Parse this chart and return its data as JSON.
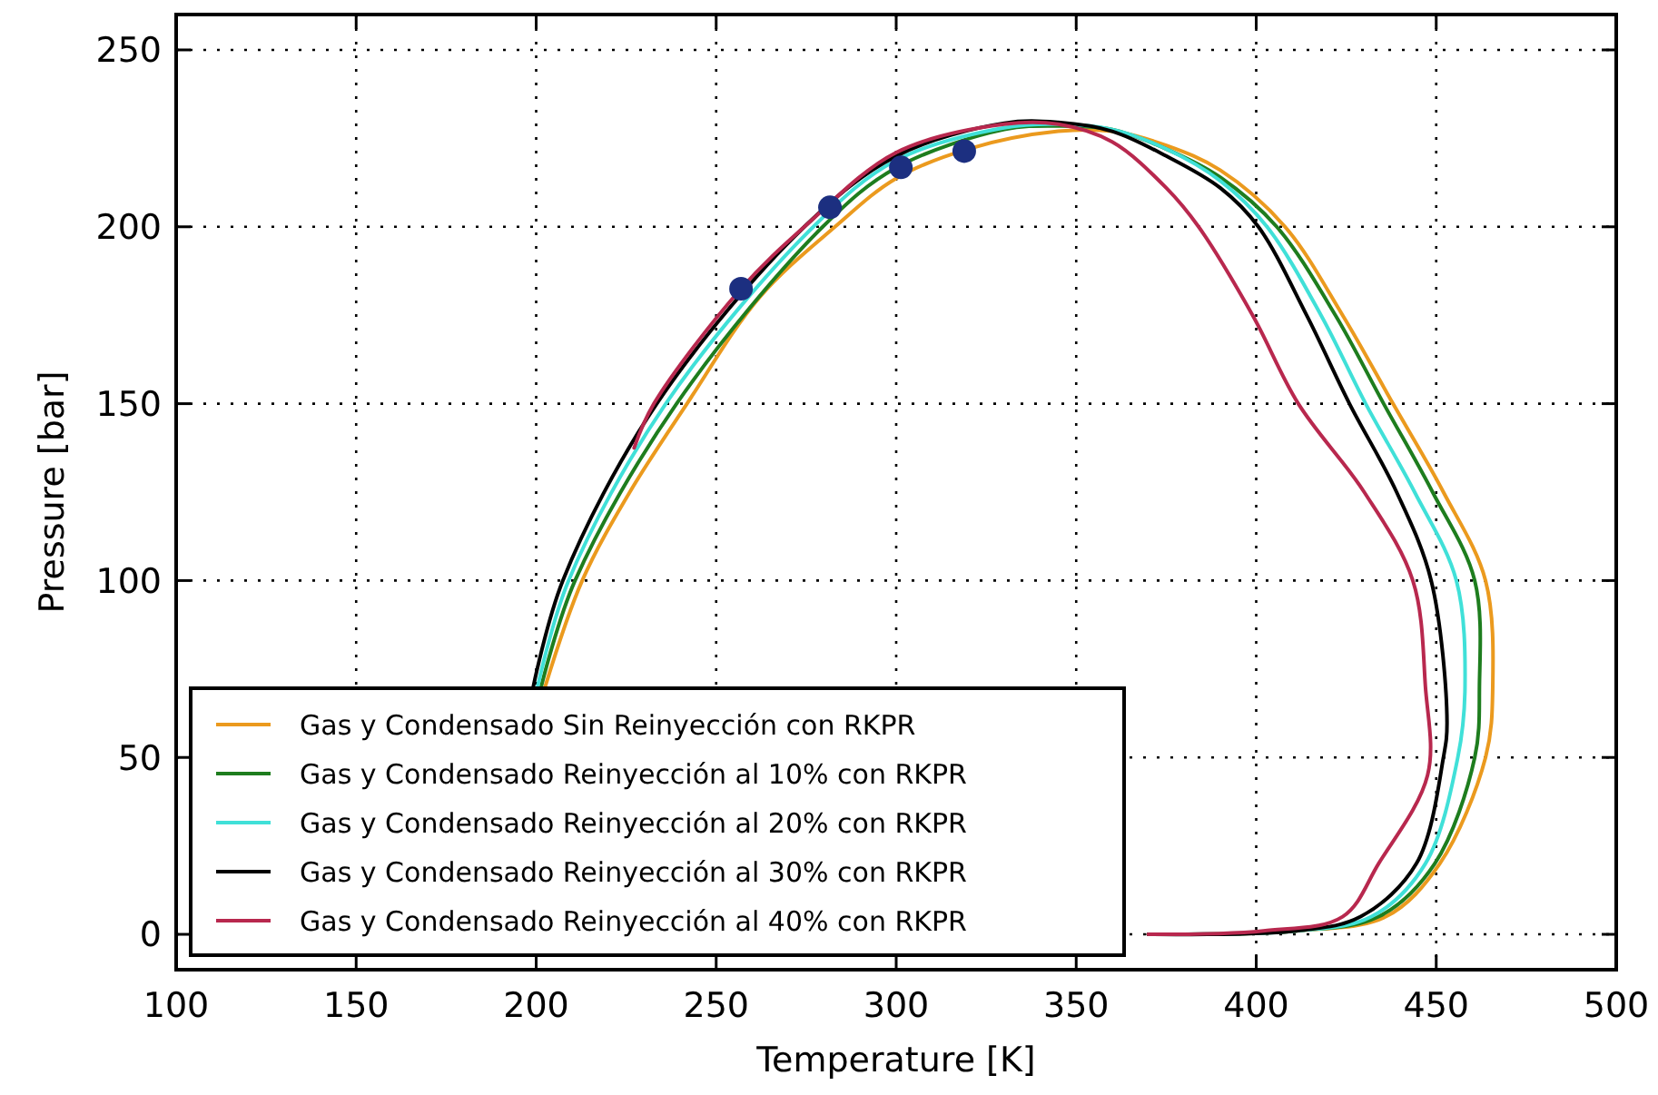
{
  "chart_data": {
    "type": "line",
    "xlabel": "Temperature [K]",
    "ylabel": "Pressure [bar]",
    "xlim": [
      100,
      500
    ],
    "ylim": [
      -10,
      260
    ],
    "xticks": [
      100,
      150,
      200,
      250,
      300,
      350,
      400,
      450,
      500
    ],
    "yticks": [
      0,
      50,
      100,
      150,
      200,
      250
    ],
    "grid": true,
    "legend": "bottom left",
    "line_style": "solid",
    "marker": "none",
    "series": [
      {
        "name": "Gas y Condensado Sin Reinyección con RKPR",
        "color": "#eb9a1e",
        "x": [
          202.5,
          212.8,
          226,
          241.9,
          262,
          283,
          300,
          320,
          345,
          360,
          375,
          390,
          408,
          424,
          438,
          452,
          463.7,
          465.7,
          463.7,
          451,
          436,
          411,
          370
        ],
        "values": [
          70,
          100,
          125,
          150,
          180,
          200,
          213.7,
          222,
          227,
          227,
          223,
          216,
          200,
          175,
          150,
          125,
          100,
          70,
          50,
          20,
          5,
          1,
          0
        ]
      },
      {
        "name": "Gas y Condensado Reinyección al 10% con RKPR",
        "color": "#1e7d1e",
        "x": [
          201.4,
          210.8,
          239,
          279.6,
          300,
          330,
          345,
          360,
          375,
          390,
          405.7,
          422,
          435.4,
          449,
          460.7,
          462,
          460.7,
          449.6,
          434,
          411,
          370
        ],
        "values": [
          70,
          100,
          150,
          200,
          216.7,
          227.5,
          228.5,
          227.5,
          222,
          214,
          200,
          175,
          150,
          125,
          100,
          70,
          50,
          20,
          5,
          1,
          0
        ]
      },
      {
        "name": "Gas y Condensado Reinyección al 20% con RKPR",
        "color": "#40e0d8",
        "x": [
          200.4,
          209,
          236,
          277,
          300,
          330,
          345,
          360,
          375,
          390,
          403,
          418,
          430.4,
          444,
          455.6,
          458,
          456,
          447,
          432,
          411,
          370
        ],
        "values": [
          70,
          100,
          150,
          200,
          218.8,
          228,
          229,
          227.5,
          222,
          213,
          200,
          175,
          150,
          125,
          100,
          70,
          50,
          20,
          5,
          1,
          0
        ]
      },
      {
        "name": "Gas y Condensado Reinyección al 30% con RKPR",
        "color": "#000000",
        "x": [
          199.2,
          207.4,
          233.5,
          274.5,
          300,
          330,
          345,
          360,
          375,
          390,
          400.6,
          414,
          425.9,
          439,
          448.6,
          453,
          452,
          444.5,
          429,
          411,
          370
        ],
        "values": [
          70,
          100,
          150,
          200,
          220,
          229.3,
          229.5,
          227,
          220,
          211,
          200,
          175,
          150,
          125,
          100,
          60,
          50,
          20,
          5,
          1,
          0
        ]
      },
      {
        "name": "Gas y Condensado Reinyección al 40% con RKPR",
        "color": "#b8284e",
        "x": [
          227.2,
          232.7,
          256.9,
          274.5,
          300,
          330,
          345,
          360,
          375,
          384,
          399,
          411.7,
          430,
          443.5,
          447,
          447.6,
          434,
          424,
          402,
          370
        ],
        "values": [
          137.5,
          150,
          182.5,
          200,
          221,
          229,
          229,
          224,
          211,
          200,
          175,
          150,
          125,
          100,
          70,
          45,
          20,
          5,
          1,
          0
        ]
      },
      {
        "type": "scatter",
        "marker": "circle",
        "color": "#1c2f80",
        "x": [
          256.9,
          281.6,
          301.3,
          318.9
        ],
        "values": [
          182.5,
          205.5,
          216.8,
          221.4
        ]
      }
    ]
  }
}
